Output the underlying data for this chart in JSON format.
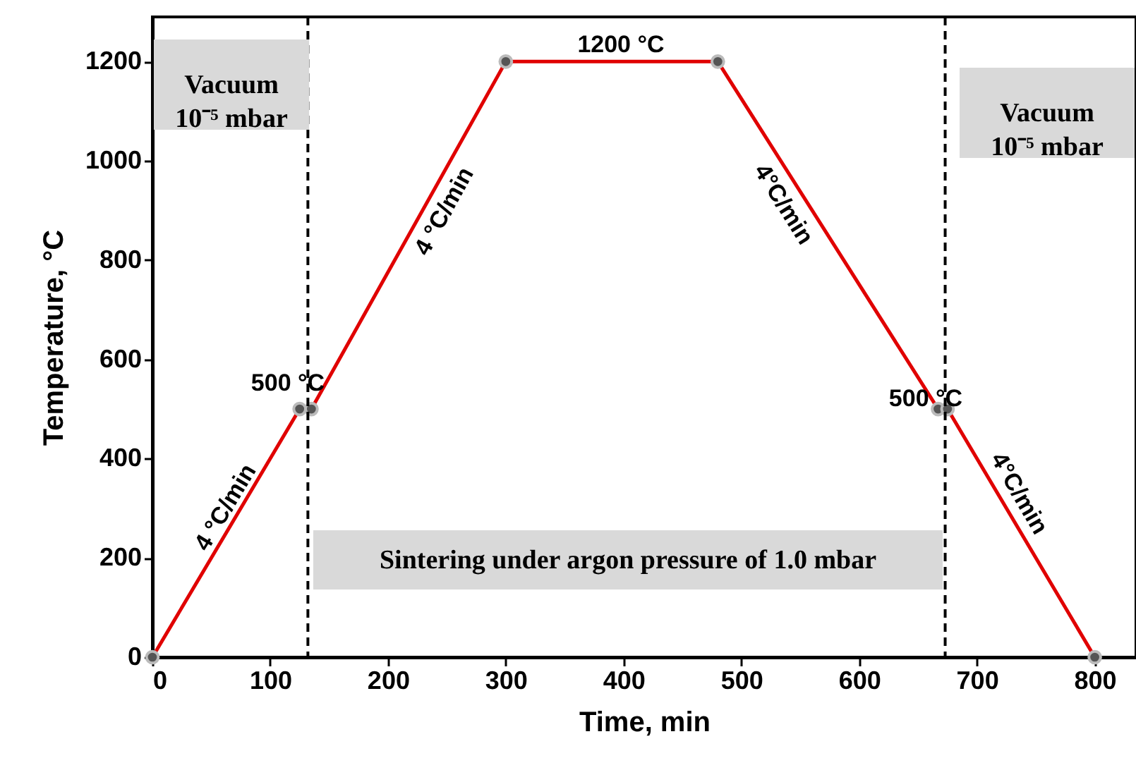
{
  "chart_data": {
    "type": "line",
    "xlabel": "Time, min",
    "ylabel": "Temperature, °C",
    "x": [
      0,
      125,
      135,
      300,
      480,
      667,
      675,
      800
    ],
    "series": [
      {
        "color": "#e00000",
        "values": [
          0,
          500,
          500,
          1200,
          1200,
          500,
          500,
          0
        ]
      }
    ],
    "xlim": [
      0,
      835
    ],
    "ylim": [
      0,
      1290
    ],
    "xticks": [
      0,
      100,
      200,
      300,
      400,
      500,
      600,
      700,
      800
    ],
    "yticks": [
      0,
      200,
      400,
      600,
      800,
      1000,
      1200
    ],
    "grid": false,
    "marker": "circle",
    "line_style": "solid",
    "ref_lines": [
      {
        "axis": "x",
        "value": 132,
        "color": "#000000",
        "line_style": "dashed"
      },
      {
        "axis": "x",
        "value": 673,
        "color": "#000000",
        "line_style": "dashed"
      }
    ],
    "annotations": [
      "4 °C/min",
      "4 °C/min",
      "4°C/min",
      "4°C/min",
      "1200 °C",
      "500 °C",
      "500 °C",
      "Vacuum\n10⁻⁵ mbar",
      "Vacuum\n10⁻⁵ mbar",
      "Sintering under argon pressure of 1.0 mbar"
    ]
  }
}
